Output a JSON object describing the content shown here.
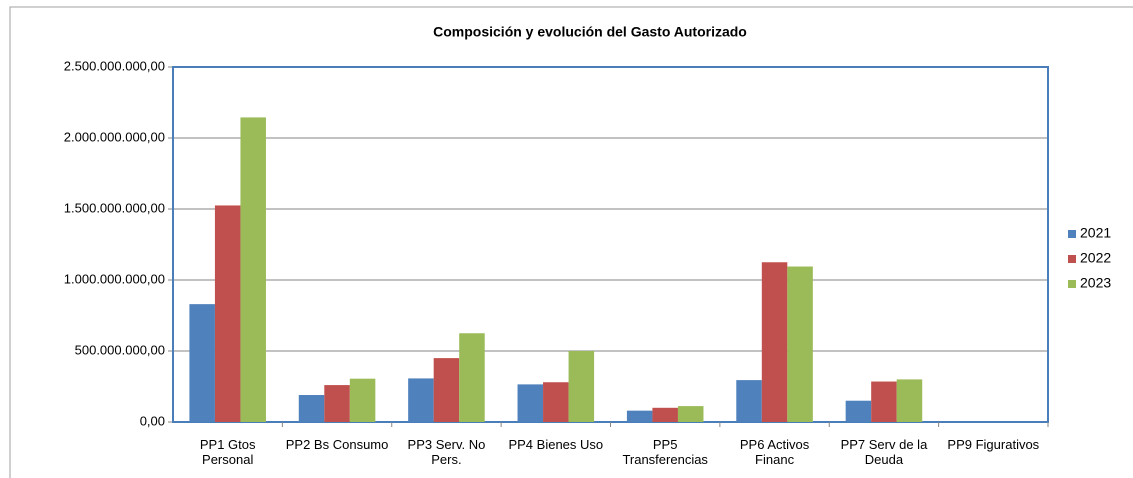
{
  "chart_data": {
    "type": "bar",
    "title": "Composición y evolución del Gasto Autorizado",
    "categories": [
      "PP1 Gtos Personal",
      "PP2 Bs Consumo",
      "PP3 Serv. No Pers.",
      "PP4 Bienes Uso",
      "PP5 Transferencias",
      "PP6 Activos Financ",
      "PP7 Serv de la Deuda",
      "PP9 Figurativos"
    ],
    "series": [
      {
        "name": "2021",
        "color": "#4f81bd",
        "values": [
          830000000,
          190000000,
          307000000,
          265000000,
          80000000,
          295000000,
          150000000,
          0
        ]
      },
      {
        "name": "2022",
        "color": "#c0504d",
        "values": [
          1525000000,
          260000000,
          450000000,
          280000000,
          100000000,
          1125000000,
          285000000,
          0
        ]
      },
      {
        "name": "2023",
        "color": "#9bbb59",
        "values": [
          2145000000,
          305000000,
          625000000,
          500000000,
          112000000,
          1095000000,
          300000000,
          0
        ]
      }
    ],
    "ylim": [
      0,
      2500000000
    ],
    "yticks": [
      {
        "value": 0,
        "label": "0,00"
      },
      {
        "value": 500000000,
        "label": "500.000.000,00"
      },
      {
        "value": 1000000000,
        "label": "1.000.000.000,00"
      },
      {
        "value": 1500000000,
        "label": "1.500.000.000,00"
      },
      {
        "value": 2000000000,
        "label": "2.000.000.000,00"
      },
      {
        "value": 2500000000,
        "label": "2.500.000.000,00"
      }
    ],
    "grid": true,
    "legend": "right"
  }
}
